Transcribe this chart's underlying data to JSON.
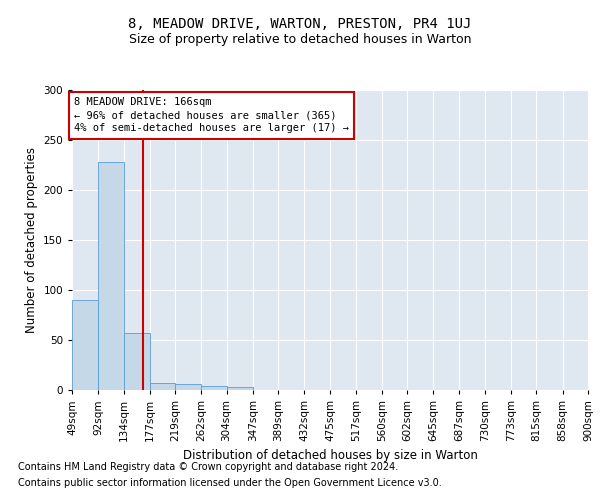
{
  "title": "8, MEADOW DRIVE, WARTON, PRESTON, PR4 1UJ",
  "subtitle": "Size of property relative to detached houses in Warton",
  "xlabel": "Distribution of detached houses by size in Warton",
  "ylabel": "Number of detached properties",
  "bar_edges": [
    49,
    92,
    134,
    177,
    219,
    262,
    304,
    347,
    389,
    432,
    475,
    517,
    560,
    602,
    645,
    687,
    730,
    773,
    815,
    858,
    900
  ],
  "bar_heights": [
    90,
    228,
    57,
    7,
    6,
    4,
    3,
    0,
    0,
    0,
    0,
    0,
    0,
    0,
    0,
    0,
    0,
    0,
    0,
    0
  ],
  "bar_color": "#c5d8e8",
  "bar_edgecolor": "#5b9bd5",
  "property_line_x": 166,
  "property_line_color": "#cc0000",
  "annotation_text": "8 MEADOW DRIVE: 166sqm\n← 96% of detached houses are smaller (365)\n4% of semi-detached houses are larger (17) →",
  "annotation_box_edgecolor": "#cc0000",
  "annotation_box_facecolor": "white",
  "ylim": [
    0,
    300
  ],
  "yticks": [
    0,
    50,
    100,
    150,
    200,
    250,
    300
  ],
  "background_color": "#dfe8f0",
  "footnote1": "Contains HM Land Registry data © Crown copyright and database right 2024.",
  "footnote2": "Contains public sector information licensed under the Open Government Licence v3.0.",
  "title_fontsize": 10,
  "subtitle_fontsize": 9,
  "axis_label_fontsize": 8.5,
  "tick_fontsize": 7.5,
  "annotation_fontsize": 7.5,
  "footnote_fontsize": 7
}
